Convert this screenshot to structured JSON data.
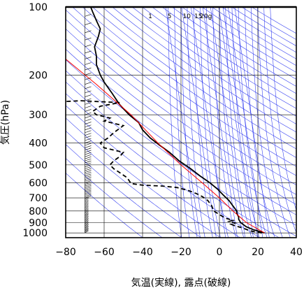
{
  "chart_data": {
    "type": "line",
    "title": "",
    "xlabel": "気温(実線), 露点(破線)",
    "ylabel": "気圧(hPa)",
    "xlim": [
      -80,
      40
    ],
    "ylim": [
      1050,
      100
    ],
    "y_scale": "log",
    "x_ticks": [
      "−80",
      "−60",
      "−40",
      "−20",
      "0",
      "20",
      "40"
    ],
    "x_tick_values": [
      -80,
      -60,
      -40,
      -20,
      0,
      20,
      40
    ],
    "y_ticks": [
      "100",
      "200",
      "300",
      "400",
      "500",
      "600",
      "700",
      "800",
      "900",
      "1000"
    ],
    "y_tick_values": [
      100,
      200,
      300,
      400,
      500,
      600,
      700,
      800,
      900,
      1000
    ],
    "mixing_ratio_labels": [
      "1",
      "5",
      "10",
      "15",
      "20g"
    ],
    "series": [
      {
        "style": "solid",
        "color": "#000000",
        "points": [
          [
            23.5,
            1000
          ],
          [
            18,
            970
          ],
          [
            14,
            940
          ],
          [
            11,
            900
          ],
          [
            10,
            870
          ],
          [
            10,
            850
          ],
          [
            9,
            820
          ],
          [
            9,
            800
          ],
          [
            7,
            760
          ],
          [
            5,
            720
          ],
          [
            2,
            680
          ],
          [
            -1,
            640
          ],
          [
            -5,
            600
          ],
          [
            -10,
            560
          ],
          [
            -15,
            520
          ],
          [
            -21,
            480
          ],
          [
            -26,
            440
          ],
          [
            -31,
            410
          ],
          [
            -36,
            380
          ],
          [
            -40,
            350
          ],
          [
            -42,
            325
          ],
          [
            -47,
            300
          ],
          [
            -52,
            270
          ],
          [
            -56,
            240
          ],
          [
            -60,
            215
          ],
          [
            -62,
            200
          ],
          [
            -64,
            180
          ],
          [
            -64,
            165
          ],
          [
            -65,
            150
          ],
          [
            -63,
            135
          ],
          [
            -62,
            125
          ],
          [
            -64,
            115
          ],
          [
            -66,
            105
          ],
          [
            -67,
            100
          ]
        ]
      },
      {
        "style": "dashed",
        "color": "#000000",
        "points": [
          [
            22,
            1000
          ],
          [
            16,
            980
          ],
          [
            12,
            950
          ],
          [
            8,
            930
          ],
          [
            6,
            915
          ],
          [
            8,
            905
          ],
          [
            5,
            890
          ],
          [
            7,
            880
          ],
          [
            3,
            860
          ],
          [
            0,
            830
          ],
          [
            -3,
            800
          ],
          [
            -4,
            760
          ],
          [
            -6,
            720
          ],
          [
            -9,
            690
          ],
          [
            -12,
            670
          ],
          [
            -16,
            650
          ],
          [
            -22,
            630
          ],
          [
            -30,
            620
          ],
          [
            -40,
            615
          ],
          [
            -46,
            605
          ],
          [
            -48,
            570
          ],
          [
            -52,
            540
          ],
          [
            -55,
            520
          ],
          [
            -57,
            500
          ],
          [
            -55,
            480
          ],
          [
            -52,
            460
          ],
          [
            -50,
            440
          ],
          [
            -55,
            430
          ],
          [
            -60,
            420
          ],
          [
            -62,
            400
          ],
          [
            -58,
            380
          ],
          [
            -55,
            360
          ],
          [
            -50,
            335
          ],
          [
            -60,
            320
          ],
          [
            -57,
            310
          ],
          [
            -64,
            300
          ],
          [
            -66,
            290
          ],
          [
            -62,
            275
          ],
          [
            -52,
            265
          ],
          [
            -72,
            260
          ],
          [
            -80,
            262
          ]
        ]
      },
      {
        "style": "solid",
        "color": "#ff0000",
        "points": [
          [
            23.5,
            1000
          ],
          [
            14,
            900
          ],
          [
            7,
            800
          ],
          [
            0,
            700
          ],
          [
            -9,
            600
          ],
          [
            -20,
            500
          ],
          [
            -32,
            400
          ],
          [
            -46,
            300
          ],
          [
            -64,
            220
          ],
          [
            -80,
            170
          ]
        ]
      }
    ],
    "reference_lines": [
      {
        "kind": "dry adiabats",
        "color": "#0000ff"
      },
      {
        "kind": "moist adiabats",
        "color": "#0000ff"
      },
      {
        "kind": "mixing ratio lines",
        "color": "#0000ff",
        "labels": [
          "1",
          "5",
          "10",
          "15",
          "20g"
        ]
      }
    ],
    "wind_barbs": {
      "x": -70,
      "pressures": [
        1000,
        950,
        900,
        850,
        800,
        750,
        700,
        650,
        600,
        550,
        500,
        450,
        400,
        350,
        300,
        250,
        200,
        150,
        100
      ]
    },
    "grid": true,
    "legend": "none"
  }
}
